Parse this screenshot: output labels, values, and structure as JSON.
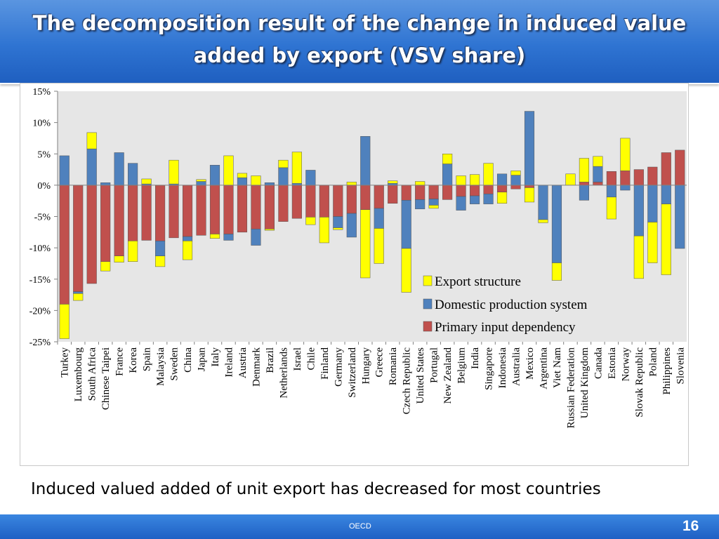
{
  "slide": {
    "title_line1": "The decomposition result of the change in induced value",
    "title_line2": "added by export (VSV share)",
    "caption": "Induced valued added of unit export has decreased for most countries",
    "footer_label": "OECD",
    "page_number": "16"
  },
  "chart_data": {
    "type": "bar",
    "stacked": true,
    "ylim": [
      -25,
      15
    ],
    "yticks": [
      15,
      10,
      5,
      0,
      -5,
      -10,
      -15,
      -20,
      -25
    ],
    "ytick_labels": [
      "15%",
      "10%",
      "5%",
      "0%",
      "-5%",
      "-10%",
      "-15%",
      "-20%",
      "-25%"
    ],
    "grid": false,
    "legend_position": "bottom-right",
    "categories": [
      "Turkey",
      "Luxembourg",
      "South Africa",
      "Chinese Taipei",
      "France",
      "Korea",
      "Spain",
      "Malaysia",
      "Sweden",
      "China",
      "Japan",
      "Italy",
      "Ireland",
      "Austria",
      "Denmark",
      "Brazil",
      "Netherlands",
      "Israel",
      "Chile",
      "Finland",
      "Germany",
      "Switzerland",
      "Hungary",
      "Greece",
      "Romania",
      "Czech Republic",
      "United States",
      "Portugal",
      "New Zealand",
      "Belgium",
      "India",
      "Singapore",
      "Indonesia",
      "Australia",
      "Mexico",
      "Argentina",
      "Viet Nam",
      "Russian Federation",
      "United Kingdom",
      "Canada",
      "Estonia",
      "Norway",
      "Slovak Republic",
      "Poland",
      "Philippines",
      "Slovenia"
    ],
    "series": [
      {
        "name": "Export structure",
        "color": "#ffff00",
        "values": [
          -5.5,
          -1.1,
          2.6,
          -1.5,
          -1.0,
          -3.3,
          0.8,
          -1.7,
          3.8,
          -3.0,
          0.3,
          -0.7,
          4.7,
          0.7,
          1.5,
          -0.2,
          1.2,
          5.0,
          -1.2,
          -4.1,
          -0.3,
          0.5,
          -10.9,
          -5.6,
          0.4,
          -7.0,
          0.6,
          -0.5,
          1.6,
          1.5,
          1.7,
          3.5,
          -1.8,
          0.7,
          -2.3,
          -0.5,
          -2.8,
          1.8,
          3.8,
          1.6,
          -3.5,
          5.2,
          -6.8,
          -6.5,
          -11.3,
          0
        ]
      },
      {
        "name": "Domestic production system",
        "color": "#4f81bd",
        "values": [
          4.7,
          -0.3,
          5.8,
          0.4,
          5.2,
          3.5,
          0.2,
          -2.4,
          0.2,
          -0.7,
          0.6,
          3.2,
          -1.0,
          1.2,
          -2.6,
          0.4,
          2.8,
          0.3,
          2.4,
          0,
          -1.8,
          -3.8,
          7.8,
          -3.2,
          0.3,
          -7.7,
          -1.5,
          -1.0,
          3.4,
          -2.2,
          -1.3,
          -1.6,
          1.8,
          1.6,
          11.8,
          -5.5,
          -12.4,
          0,
          -2.4,
          2.5,
          -1.9,
          -0.8,
          -8.1,
          -5.9,
          -3.0,
          -10.1
        ]
      },
      {
        "name": "Primary input dependency",
        "color": "#c0504d",
        "values": [
          -19.0,
          -17.0,
          -15.7,
          -12.2,
          -11.3,
          -8.9,
          -8.8,
          -8.9,
          -8.4,
          -8.2,
          -8.0,
          -7.8,
          -7.8,
          -7.5,
          -7.0,
          -7.0,
          -5.8,
          -5.3,
          -5.1,
          -5.1,
          -5.0,
          -4.5,
          -3.9,
          -3.7,
          -2.9,
          -2.4,
          -2.3,
          -2.2,
          -2.3,
          -1.8,
          -1.7,
          -1.4,
          -1.1,
          -0.6,
          -0.4,
          0,
          0,
          0,
          0.5,
          0.5,
          2.2,
          2.3,
          2.5,
          2.9,
          5.2,
          5.6
        ]
      }
    ]
  }
}
